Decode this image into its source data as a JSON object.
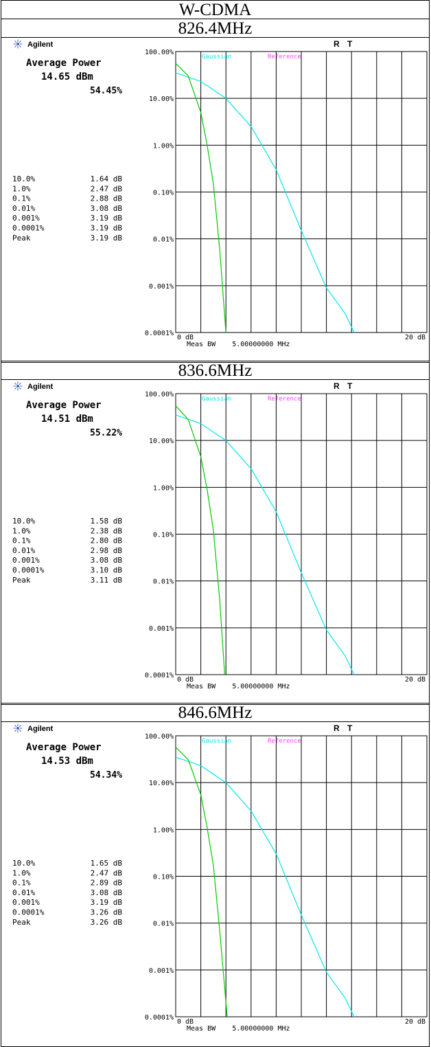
{
  "title": "W-CDMA",
  "colors": {
    "gaussian": "#00e5ee",
    "reference": "#ff40ff",
    "measured": "#00c800"
  },
  "panels": [
    {
      "frequency": "826.4MHz",
      "brand": "Agilent",
      "status_r": "R",
      "status_t": "T",
      "avg_power_label": "Average Power",
      "avg_power_value": "14.65 dBm",
      "percent": "54.45%",
      "stats": [
        {
          "p": "10.0%",
          "v": "1.64 dB"
        },
        {
          "p": "1.0%",
          "v": "2.47 dB"
        },
        {
          "p": "0.1%",
          "v": "2.88 dB"
        },
        {
          "p": "0.01%",
          "v": "3.08 dB"
        },
        {
          "p": "0.001%",
          "v": "3.19 dB"
        },
        {
          "p": "0.0001%",
          "v": "3.19 dB"
        },
        {
          "p": "Peak",
          "v": "3.19 dB"
        }
      ],
      "footer": "Meas BW    5.00000000 MHz"
    },
    {
      "frequency": "836.6MHz",
      "brand": "Agilent",
      "status_r": "R",
      "status_t": "T",
      "avg_power_label": "Average Power",
      "avg_power_value": "14.51 dBm",
      "percent": "55.22%",
      "stats": [
        {
          "p": "10.0%",
          "v": "1.58 dB"
        },
        {
          "p": "1.0%",
          "v": "2.38 dB"
        },
        {
          "p": "0.1%",
          "v": "2.80 dB"
        },
        {
          "p": "0.01%",
          "v": "2.98 dB"
        },
        {
          "p": "0.001%",
          "v": "3.08 dB"
        },
        {
          "p": "0.0001%",
          "v": "3.10 dB"
        },
        {
          "p": "Peak",
          "v": "3.11 dB"
        }
      ],
      "footer": "Meas BW    5.00000000 MHz"
    },
    {
      "frequency": "846.6MHz",
      "brand": "Agilent",
      "status_r": "R",
      "status_t": "T",
      "avg_power_label": "Average Power",
      "avg_power_value": "14.53 dBm",
      "percent": "54.34%",
      "stats": [
        {
          "p": "10.0%",
          "v": "1.65 dB"
        },
        {
          "p": "1.0%",
          "v": "2.47 dB"
        },
        {
          "p": "0.1%",
          "v": "2.89 dB"
        },
        {
          "p": "0.01%",
          "v": "3.08 dB"
        },
        {
          "p": "0.001%",
          "v": "3.19 dB"
        },
        {
          "p": "0.0001%",
          "v": "3.26 dB"
        },
        {
          "p": "Peak",
          "v": "3.26 dB"
        }
      ],
      "footer": "Meas BW    5.00000000 MHz"
    }
  ],
  "chart_data": [
    {
      "type": "line",
      "yscale": "log",
      "xlim": [
        0,
        20
      ],
      "ylim": [
        0.0001,
        100
      ],
      "grid": true,
      "y_ticks": [
        "100.00%",
        "10.00%",
        "1.00%",
        "0.10%",
        "0.01%",
        "0.001%",
        "0.0001%"
      ],
      "x_tick_left": "0 dB",
      "x_tick_right": "20 dB",
      "legend": [
        "Gaussian",
        "Reference"
      ],
      "series": [
        {
          "name": "Gaussian",
          "x": [
            0,
            2,
            4,
            6,
            8,
            10,
            12,
            13.5,
            14.2
          ],
          "y": [
            35,
            23,
            10,
            2.5,
            0.3,
            0.015,
            0.0009,
            0.00025,
            0.0001
          ]
        },
        {
          "x": [
            0,
            1,
            2,
            2.5,
            3,
            3.5,
            4.0
          ],
          "y": [
            56,
            30,
            5,
            1.0,
            0.15,
            0.006,
            0.0001
          ]
        }
      ]
    },
    {
      "type": "line",
      "yscale": "log",
      "xlim": [
        0,
        20
      ],
      "ylim": [
        0.0001,
        100
      ],
      "grid": true,
      "y_ticks": [
        "100.00%",
        "10.00%",
        "1.00%",
        "0.10%",
        "0.01%",
        "0.001%",
        "0.0001%"
      ],
      "x_tick_left": "0 dB",
      "x_tick_right": "20 dB",
      "legend": [
        "Gaussian",
        "Reference"
      ],
      "series": [
        {
          "name": "Gaussian",
          "x": [
            0,
            2,
            4,
            6,
            8,
            10,
            12,
            13.5,
            14.2
          ],
          "y": [
            35,
            23,
            10,
            2.5,
            0.3,
            0.015,
            0.0009,
            0.00025,
            0.0001
          ]
        },
        {
          "x": [
            0,
            1,
            2,
            2.5,
            3,
            3.5,
            3.9
          ],
          "y": [
            55,
            28,
            4.5,
            0.9,
            0.12,
            0.004,
            0.0001
          ]
        }
      ]
    },
    {
      "type": "line",
      "yscale": "log",
      "xlim": [
        0,
        20
      ],
      "ylim": [
        0.0001,
        100
      ],
      "grid": true,
      "y_ticks": [
        "100.00%",
        "10.00%",
        "1.00%",
        "0.10%",
        "0.01%",
        "0.001%",
        "0.0001%"
      ],
      "x_tick_left": "0 dB",
      "x_tick_right": "20 dB",
      "legend": [
        "Gaussian",
        "Reference"
      ],
      "series": [
        {
          "name": "Gaussian",
          "x": [
            0,
            2,
            4,
            6,
            8,
            10,
            12,
            13.5,
            14.2
          ],
          "y": [
            35,
            23,
            10,
            2.5,
            0.3,
            0.015,
            0.0009,
            0.00025,
            0.0001
          ]
        },
        {
          "x": [
            0,
            1,
            2,
            2.5,
            3,
            3.5,
            4.1
          ],
          "y": [
            57,
            31,
            5.5,
            1.1,
            0.17,
            0.007,
            0.0001
          ]
        }
      ]
    }
  ]
}
